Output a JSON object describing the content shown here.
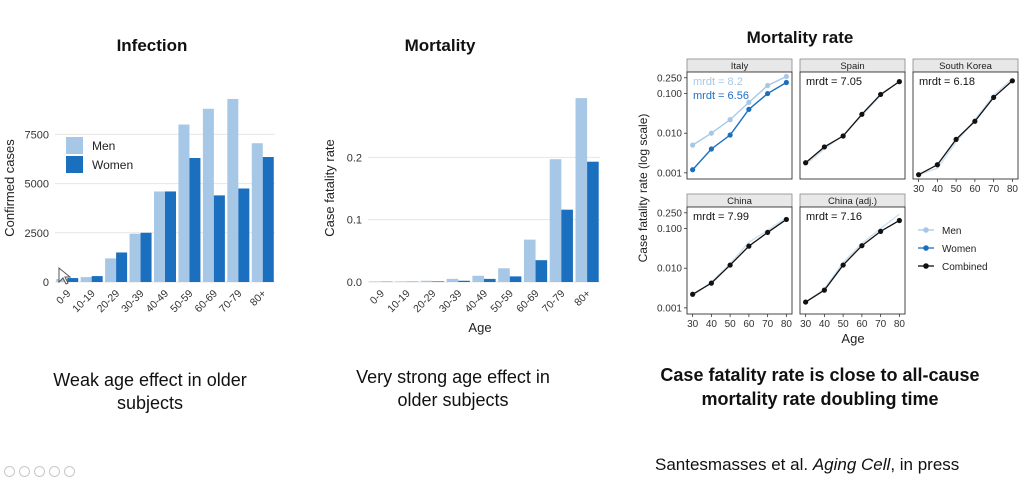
{
  "panels": {
    "infection": {
      "title": "Infection",
      "caption_line1": "Weak age effect in older",
      "caption_line2": "subjects"
    },
    "mortality": {
      "title": "Mortality",
      "caption_line1": "Very strong age effect in",
      "caption_line2": "older subjects"
    },
    "rate": {
      "title": "Mortality rate",
      "caption_line1": "Case fatality rate is close to all-cause",
      "caption_line2": "mortality rate doubling time"
    }
  },
  "citation": {
    "authors": "Santesmasses et al. ",
    "journal": "Aging Cell",
    "suffix": ", in press"
  },
  "colors": {
    "men": "#a6c8e6",
    "women": "#1b6fbf",
    "combined": "#111111",
    "grid": "#e6e6e6"
  },
  "chart_data": [
    {
      "type": "bar",
      "title": "",
      "xlabel": "",
      "ylabel": "Confirmed cases",
      "categories": [
        "0-9",
        "10-19",
        "20-29",
        "30-39",
        "40-49",
        "50-59",
        "60-69",
        "70-79",
        "80+"
      ],
      "series": [
        {
          "name": "Men",
          "values": [
            150,
            250,
            1200,
            2450,
            4600,
            8000,
            8800,
            9300,
            7050
          ]
        },
        {
          "name": "Women",
          "values": [
            200,
            300,
            1500,
            2500,
            4600,
            6300,
            4400,
            4750,
            6350
          ]
        }
      ],
      "ylim": [
        0,
        9500
      ],
      "yticks": [
        0,
        2500,
        5000,
        7500
      ],
      "legend": "top-left",
      "grid": true
    },
    {
      "type": "bar",
      "title": "",
      "xlabel": "Age",
      "ylabel": "Case fatality rate",
      "categories": [
        "0-9",
        "10-19",
        "20-29",
        "30-39",
        "40-49",
        "50-59",
        "60-69",
        "70-79",
        "80+"
      ],
      "series": [
        {
          "name": "Men",
          "values": [
            0.001,
            0.001,
            0.002,
            0.005,
            0.01,
            0.022,
            0.068,
            0.197,
            0.295
          ]
        },
        {
          "name": "Women",
          "values": [
            0.0005,
            0.0005,
            0.001,
            0.002,
            0.005,
            0.009,
            0.035,
            0.116,
            0.193
          ]
        }
      ],
      "ylim": [
        0,
        0.3
      ],
      "yticks": [
        0.0,
        0.1,
        0.2
      ],
      "grid": true
    },
    {
      "type": "line",
      "title": "",
      "xlabel": "Age",
      "ylabel": "Case fatality rate (log scale)",
      "log_y": true,
      "x": [
        30,
        40,
        50,
        60,
        70,
        80
      ],
      "xticks": [
        30,
        40,
        50,
        60,
        70,
        80
      ],
      "yticks": [
        0.001,
        0.01,
        0.1,
        0.25
      ],
      "ytick_labels": [
        "0.001",
        "0.010",
        "0.100",
        "0.250"
      ],
      "ylim": [
        0.0007,
        0.35
      ],
      "legend": "right",
      "legend_entries": [
        "Men",
        "Women",
        "Combined"
      ],
      "facets": [
        {
          "name": "Italy",
          "annotations": [
            {
              "text": "mrdt = 8.2",
              "series": "Men"
            },
            {
              "text": "mrdt = 6.56",
              "series": "Women"
            }
          ],
          "series": [
            {
              "name": "Men",
              "values": [
                0.005,
                0.01,
                0.022,
                0.06,
                0.16,
                0.27
              ]
            },
            {
              "name": "Women",
              "values": [
                0.0012,
                0.004,
                0.009,
                0.04,
                0.1,
                0.19
              ]
            }
          ]
        },
        {
          "name": "Spain",
          "annotations": [
            {
              "text": "mrdt = 7.05",
              "series": "Combined"
            }
          ],
          "series": [
            {
              "name": "Men",
              "values": [
                0.0016,
                0.004,
                0.009,
                0.028,
                0.09,
                0.21
              ]
            },
            {
              "name": "Combined",
              "values": [
                0.0018,
                0.0045,
                0.0085,
                0.03,
                0.095,
                0.2
              ]
            }
          ]
        },
        {
          "name": "South Korea",
          "annotations": [
            {
              "text": "mrdt = 6.18",
              "series": "Combined"
            }
          ],
          "series": [
            {
              "name": "Men",
              "values": [
                0.0009,
                0.0013,
                0.006,
                0.022,
                0.09,
                0.24
              ]
            },
            {
              "name": "Combined",
              "values": [
                0.0009,
                0.0016,
                0.007,
                0.02,
                0.08,
                0.21
              ]
            }
          ]
        },
        {
          "name": "China",
          "annotations": [
            {
              "text": "mrdt = 7.99",
              "series": "Combined"
            }
          ],
          "series": [
            {
              "name": "Men",
              "values": [
                0.002,
                0.0045,
                0.013,
                0.045,
                0.09,
                0.19
              ]
            },
            {
              "name": "Combined",
              "values": [
                0.0022,
                0.0042,
                0.012,
                0.036,
                0.08,
                0.17
              ]
            }
          ]
        },
        {
          "name": "China (adj.)",
          "annotations": [
            {
              "text": "mrdt = 7.16",
              "series": "Combined"
            }
          ],
          "series": [
            {
              "name": "Men",
              "values": [
                0.0014,
                0.003,
                0.014,
                0.042,
                0.1,
                0.23
              ]
            },
            {
              "name": "Combined",
              "values": [
                0.0014,
                0.0028,
                0.012,
                0.037,
                0.085,
                0.16
              ]
            }
          ]
        }
      ]
    }
  ]
}
